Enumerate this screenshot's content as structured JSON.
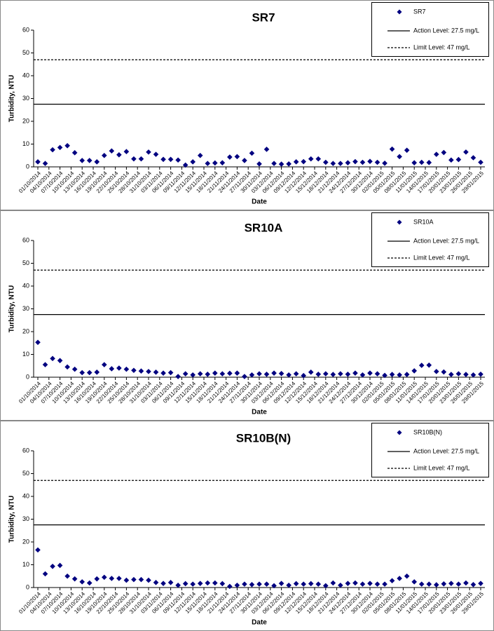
{
  "chart_data": [
    {
      "type": "scatter",
      "title": "SR7",
      "x_label": "Date",
      "y_label": "Turbidity, NTU",
      "x": [
        "01/10/2014",
        "03/10/2014",
        "05/10/2014",
        "07/10/2014",
        "09/10/2014",
        "11/10/2014",
        "13/10/2014",
        "15/10/2014",
        "17/10/2014",
        "19/10/2014",
        "21/10/2014",
        "23/10/2014",
        "25/10/2014",
        "27/10/2014",
        "29/10/2014",
        "31/10/2014",
        "02/11/2014",
        "04/11/2014",
        "06/11/2014",
        "08/11/2014",
        "10/11/2014",
        "12/11/2014",
        "14/11/2014",
        "16/11/2014",
        "18/11/2014",
        "20/11/2014",
        "22/11/2014",
        "24/11/2014",
        "26/11/2014",
        "28/11/2014",
        "30/11/2014",
        "02/12/2014",
        "04/12/2014",
        "06/12/2014",
        "08/12/2014",
        "10/12/2014",
        "12/12/2014",
        "14/12/2014",
        "16/12/2014",
        "18/12/2014",
        "20/12/2014",
        "22/12/2014",
        "24/12/2014",
        "26/12/2014",
        "28/12/2014",
        "30/12/2014",
        "01/01/2015",
        "03/01/2015",
        "05/01/2015",
        "07/01/2015",
        "09/01/2015",
        "11/01/2015",
        "13/01/2015",
        "15/01/2015",
        "17/01/2015",
        "19/01/2015",
        "21/01/2015",
        "23/01/2015",
        "25/01/2015",
        "27/01/2015",
        "29/01/2015"
      ],
      "series": [
        {
          "name": "SR7",
          "color": "#000080",
          "values": [
            2.2,
            1.5,
            7.5,
            8.5,
            9.3,
            6.2,
            2.8,
            2.8,
            2.2,
            5.0,
            7.0,
            5.3,
            6.7,
            3.5,
            3.5,
            6.5,
            5.5,
            3.3,
            3.3,
            3.0,
            0.8,
            2.2,
            5.0,
            1.5,
            1.7,
            1.8,
            4.3,
            4.5,
            2.8,
            6.0,
            1.3,
            7.7,
            1.5,
            1.2,
            1.3,
            2.2,
            2.3,
            3.5,
            3.5,
            2.0,
            1.5,
            1.5,
            1.8,
            2.3,
            2.0,
            2.4,
            2.0,
            1.6,
            7.8,
            4.5,
            7.3,
            1.8,
            2.0,
            1.9,
            5.5,
            6.3,
            3.0,
            3.2,
            6.5,
            4.0,
            2.0
          ]
        }
      ],
      "reference_lines": [
        {
          "name": "Action Level: 27.5 mg/L",
          "value": 27.5,
          "style": "solid"
        },
        {
          "name": "Limit Level: 47 mg/L",
          "value": 47,
          "style": "dashed"
        }
      ],
      "xlim": [
        "01/10/2014",
        "29/01/2015"
      ],
      "xticks": [
        "01/10/2014",
        "04/10/2014",
        "07/10/2014",
        "10/10/2014",
        "13/10/2014",
        "16/10/2014",
        "19/10/2014",
        "22/10/2014",
        "25/10/2014",
        "28/10/2014",
        "31/10/2014",
        "03/11/2014",
        "06/11/2014",
        "09/11/2014",
        "12/11/2014",
        "15/11/2014",
        "18/11/2014",
        "21/11/2014",
        "24/11/2014",
        "27/11/2014",
        "30/11/2014",
        "03/12/2014",
        "06/12/2014",
        "09/12/2014",
        "12/12/2014",
        "15/12/2014",
        "18/12/2014",
        "21/12/2014",
        "24/12/2014",
        "27/12/2014",
        "30/12/2014",
        "02/01/2015",
        "05/01/2015",
        "08/01/2015",
        "11/01/2015",
        "14/01/2015",
        "17/01/2015",
        "20/01/2015",
        "23/01/2015",
        "26/01/2015",
        "29/01/2015"
      ],
      "ylim": [
        0,
        60
      ],
      "yticks": [
        0,
        10,
        20,
        30,
        40,
        50,
        60
      ]
    },
    {
      "type": "scatter",
      "title": "SR10A",
      "x_label": "Date",
      "y_label": "Turbidity, NTU",
      "x": [
        "01/10/2014",
        "03/10/2014",
        "05/10/2014",
        "07/10/2014",
        "09/10/2014",
        "11/10/2014",
        "13/10/2014",
        "15/10/2014",
        "17/10/2014",
        "19/10/2014",
        "21/10/2014",
        "23/10/2014",
        "25/10/2014",
        "27/10/2014",
        "29/10/2014",
        "31/10/2014",
        "02/11/2014",
        "04/11/2014",
        "06/11/2014",
        "08/11/2014",
        "10/11/2014",
        "12/11/2014",
        "14/11/2014",
        "16/11/2014",
        "18/11/2014",
        "20/11/2014",
        "22/11/2014",
        "24/11/2014",
        "26/11/2014",
        "28/11/2014",
        "30/11/2014",
        "02/12/2014",
        "04/12/2014",
        "06/12/2014",
        "08/12/2014",
        "10/12/2014",
        "12/12/2014",
        "14/12/2014",
        "16/12/2014",
        "18/12/2014",
        "20/12/2014",
        "22/12/2014",
        "24/12/2014",
        "26/12/2014",
        "28/12/2014",
        "30/12/2014",
        "01/01/2015",
        "03/01/2015",
        "05/01/2015",
        "07/01/2015",
        "09/01/2015",
        "11/01/2015",
        "13/01/2015",
        "15/01/2015",
        "17/01/2015",
        "19/01/2015",
        "21/01/2015",
        "23/01/2015",
        "25/01/2015",
        "27/01/2015",
        "29/01/2015"
      ],
      "series": [
        {
          "name": "SR10A",
          "color": "#000080",
          "values": [
            15.3,
            5.5,
            8.2,
            7.3,
            4.5,
            3.5,
            2.0,
            2.0,
            2.2,
            5.5,
            3.7,
            4.0,
            3.5,
            3.0,
            2.7,
            2.5,
            2.2,
            1.8,
            2.0,
            0.3,
            1.5,
            1.0,
            1.5,
            1.3,
            1.8,
            1.5,
            1.7,
            1.8,
            0.3,
            1.0,
            1.5,
            1.3,
            1.8,
            1.6,
            1.0,
            1.5,
            0.7,
            2.2,
            1.3,
            1.5,
            1.2,
            1.5,
            1.3,
            1.8,
            1.0,
            1.8,
            1.5,
            0.8,
            1.2,
            1.0,
            1.2,
            2.8,
            5.2,
            5.3,
            2.5,
            2.3,
            1.2,
            1.5,
            1.2,
            1.0,
            1.3
          ]
        }
      ],
      "reference_lines": [
        {
          "name": "Action Level: 27.5 mg/L",
          "value": 27.5,
          "style": "solid"
        },
        {
          "name": "Limit Level: 47 mg/L",
          "value": 47,
          "style": "dashed"
        }
      ],
      "xlim": [
        "01/10/2014",
        "29/01/2015"
      ],
      "xticks": [
        "01/10/2014",
        "04/10/2014",
        "07/10/2014",
        "10/10/2014",
        "13/10/2014",
        "16/10/2014",
        "19/10/2014",
        "22/10/2014",
        "25/10/2014",
        "28/10/2014",
        "31/10/2014",
        "03/11/2014",
        "06/11/2014",
        "09/11/2014",
        "12/11/2014",
        "15/11/2014",
        "18/11/2014",
        "21/11/2014",
        "24/11/2014",
        "27/11/2014",
        "30/11/2014",
        "03/12/2014",
        "06/12/2014",
        "09/12/2014",
        "12/12/2014",
        "15/12/2014",
        "18/12/2014",
        "21/12/2014",
        "24/12/2014",
        "27/12/2014",
        "30/12/2014",
        "02/01/2015",
        "05/01/2015",
        "08/01/2015",
        "11/01/2015",
        "14/01/2015",
        "17/01/2015",
        "20/01/2015",
        "23/01/2015",
        "26/01/2015",
        "29/01/2015"
      ],
      "ylim": [
        0,
        60
      ],
      "yticks": [
        0,
        10,
        20,
        30,
        40,
        50,
        60
      ]
    },
    {
      "type": "scatter",
      "title": "SR10B(N)",
      "x_label": "Date",
      "y_label": "Turbidity, NTU",
      "x": [
        "01/10/2014",
        "03/10/2014",
        "05/10/2014",
        "07/10/2014",
        "09/10/2014",
        "11/10/2014",
        "13/10/2014",
        "15/10/2014",
        "17/10/2014",
        "19/10/2014",
        "21/10/2014",
        "23/10/2014",
        "25/10/2014",
        "27/10/2014",
        "29/10/2014",
        "31/10/2014",
        "02/11/2014",
        "04/11/2014",
        "06/11/2014",
        "08/11/2014",
        "10/11/2014",
        "12/11/2014",
        "14/11/2014",
        "16/11/2014",
        "18/11/2014",
        "20/11/2014",
        "22/11/2014",
        "24/11/2014",
        "26/11/2014",
        "28/11/2014",
        "30/11/2014",
        "02/12/2014",
        "04/12/2014",
        "06/12/2014",
        "08/12/2014",
        "10/12/2014",
        "12/12/2014",
        "14/12/2014",
        "16/12/2014",
        "18/12/2014",
        "20/12/2014",
        "22/12/2014",
        "24/12/2014",
        "26/12/2014",
        "28/12/2014",
        "30/12/2014",
        "01/01/2015",
        "03/01/2015",
        "05/01/2015",
        "07/01/2015",
        "09/01/2015",
        "11/01/2015",
        "13/01/2015",
        "15/01/2015",
        "17/01/2015",
        "19/01/2015",
        "21/01/2015",
        "23/01/2015",
        "25/01/2015",
        "27/01/2015",
        "29/01/2015"
      ],
      "series": [
        {
          "name": "SR10B(N)",
          "color": "#000080",
          "values": [
            16.5,
            6.0,
            9.3,
            9.7,
            5.0,
            3.8,
            2.5,
            2.0,
            3.8,
            4.5,
            4.0,
            4.0,
            3.2,
            3.5,
            3.5,
            3.2,
            2.2,
            1.8,
            2.2,
            1.0,
            1.7,
            1.5,
            1.8,
            2.0,
            2.0,
            1.7,
            0.5,
            1.0,
            1.5,
            1.3,
            1.5,
            1.5,
            0.8,
            1.8,
            1.0,
            1.7,
            1.5,
            1.7,
            1.5,
            0.8,
            2.0,
            1.0,
            1.8,
            2.0,
            1.5,
            1.8,
            1.5,
            1.5,
            3.0,
            4.0,
            5.0,
            2.5,
            1.5,
            1.5,
            1.2,
            1.6,
            1.8,
            1.5,
            2.0,
            1.3,
            1.8
          ]
        }
      ],
      "reference_lines": [
        {
          "name": "Action Level: 27.5 mg/L",
          "value": 27.5,
          "style": "solid"
        },
        {
          "name": "Limit Level: 47 mg/L",
          "value": 47,
          "style": "dashed"
        }
      ],
      "xlim": [
        "01/10/2014",
        "29/01/2015"
      ],
      "xticks": [
        "01/10/2014",
        "04/10/2014",
        "07/10/2014",
        "10/10/2014",
        "13/10/2014",
        "16/10/2014",
        "19/10/2014",
        "22/10/2014",
        "25/10/2014",
        "28/10/2014",
        "31/10/2014",
        "03/11/2014",
        "06/11/2014",
        "09/11/2014",
        "12/11/2014",
        "15/11/2014",
        "18/11/2014",
        "21/11/2014",
        "24/11/2014",
        "27/11/2014",
        "30/11/2014",
        "03/12/2014",
        "06/12/2014",
        "09/12/2014",
        "12/12/2014",
        "15/12/2014",
        "18/12/2014",
        "21/12/2014",
        "24/12/2014",
        "27/12/2014",
        "30/12/2014",
        "02/01/2015",
        "05/01/2015",
        "08/01/2015",
        "11/01/2015",
        "14/01/2015",
        "17/01/2015",
        "20/01/2015",
        "23/01/2015",
        "26/01/2015",
        "29/01/2015"
      ],
      "ylim": [
        0,
        60
      ],
      "yticks": [
        0,
        10,
        20,
        30,
        40,
        50,
        60
      ]
    }
  ]
}
